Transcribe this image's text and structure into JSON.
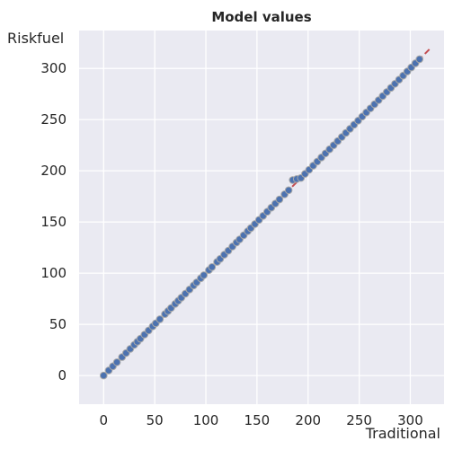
{
  "chart_data": {
    "type": "scatter",
    "title": "Model values",
    "xlabel": "Traditional",
    "ylabel": "Riskfuel",
    "xlim": [
      -24,
      333
    ],
    "ylim": [
      -28,
      337
    ],
    "xticks": [
      0,
      50,
      100,
      150,
      200,
      250,
      300
    ],
    "yticks": [
      0,
      50,
      100,
      150,
      200,
      250,
      300
    ],
    "grid": true,
    "background": "#EAEAF2",
    "marker_color": "#4C72B0",
    "marker_edge": "#A8A8A8",
    "reference_line": {
      "style": "dashed",
      "color": "#C44E52",
      "x": [
        0,
        320
      ],
      "y": [
        0,
        320
      ]
    },
    "series": [
      {
        "x": [
          0,
          5,
          9,
          13,
          18,
          22,
          26,
          30,
          33,
          36,
          40,
          44,
          48,
          51,
          55,
          60,
          63,
          66,
          70,
          73,
          76,
          80,
          84,
          88,
          91,
          95,
          98,
          103,
          106,
          111,
          114,
          118,
          122,
          126,
          130,
          133,
          137,
          141,
          144,
          148,
          152,
          156,
          160,
          164,
          168,
          172,
          177,
          181,
          185,
          189,
          193,
          197,
          201,
          205,
          209,
          213,
          217,
          221,
          225,
          229,
          233,
          237,
          241,
          245,
          249,
          253,
          257,
          261,
          265,
          269,
          273,
          277,
          281,
          285,
          289,
          293,
          297,
          301,
          305,
          309
        ],
        "y": [
          0,
          5,
          9,
          13,
          18,
          22,
          26,
          30,
          33,
          36,
          40,
          44,
          48,
          51,
          55,
          60,
          63,
          66,
          70,
          73,
          76,
          80,
          84,
          88,
          91,
          95,
          98,
          103,
          106,
          111,
          114,
          118,
          122,
          126,
          130,
          133,
          137,
          141,
          144,
          148,
          152,
          156,
          160,
          164,
          168,
          172,
          177,
          181,
          191,
          192,
          193,
          197,
          201,
          205,
          209,
          213,
          217,
          221,
          225,
          229,
          233,
          237,
          241,
          245,
          249,
          253,
          257,
          261,
          265,
          269,
          273,
          277,
          281,
          285,
          289,
          293,
          297,
          301,
          305,
          309
        ]
      }
    ]
  }
}
